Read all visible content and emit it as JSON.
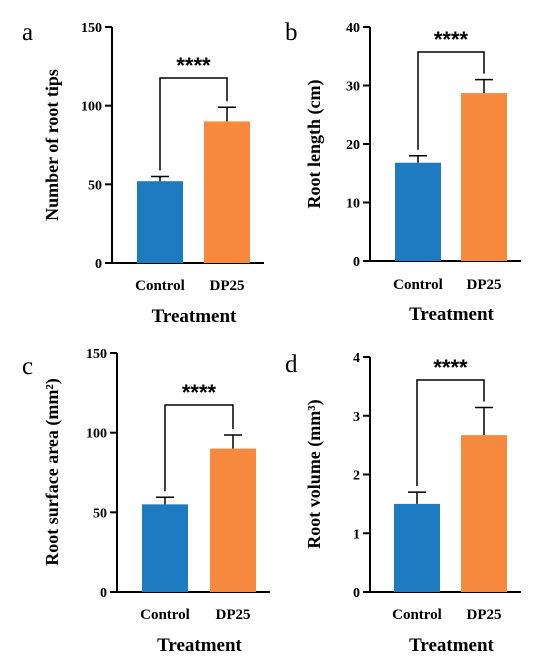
{
  "colors": {
    "control": "#1f7bc1",
    "dp25": "#f7893f"
  },
  "chart_data": [
    {
      "type": "bar",
      "panel_label": "a",
      "categories": [
        "Control",
        "DP25"
      ],
      "values": [
        52,
        90
      ],
      "errors": [
        3,
        9
      ],
      "xlabel": "Treatment",
      "ylabel": "Number of root tips",
      "ylim": [
        0,
        150
      ],
      "yticks": [
        0,
        50,
        100,
        150
      ],
      "significance": "****",
      "legend": "none",
      "grid": false
    },
    {
      "type": "bar",
      "panel_label": "b",
      "categories": [
        "Control",
        "DP25"
      ],
      "values": [
        16.8,
        28.7
      ],
      "errors": [
        1.2,
        2.3
      ],
      "xlabel": "Treatment",
      "ylabel": "Root length (cm)",
      "ylim": [
        0,
        40
      ],
      "yticks": [
        0,
        10,
        20,
        30,
        40
      ],
      "significance": "****",
      "legend": "none",
      "grid": false
    },
    {
      "type": "bar",
      "panel_label": "c",
      "categories": [
        "Control",
        "DP25"
      ],
      "values": [
        55,
        90
      ],
      "errors": [
        4.5,
        8.5
      ],
      "xlabel": "Treatment",
      "ylabel": "Root surface area (mm²)",
      "ylim": [
        0,
        150
      ],
      "yticks": [
        0,
        50,
        100,
        150
      ],
      "significance": "****",
      "legend": "none",
      "grid": false
    },
    {
      "type": "bar",
      "panel_label": "d",
      "categories": [
        "Control",
        "DP25"
      ],
      "values": [
        1.5,
        2.67
      ],
      "errors": [
        0.2,
        0.47
      ],
      "xlabel": "Treatment",
      "ylabel": "Root volume (mm³)",
      "ylim": [
        0,
        4
      ],
      "yticks": [
        0,
        1,
        2,
        3,
        4
      ],
      "significance": "****",
      "legend": "none",
      "grid": false
    }
  ]
}
